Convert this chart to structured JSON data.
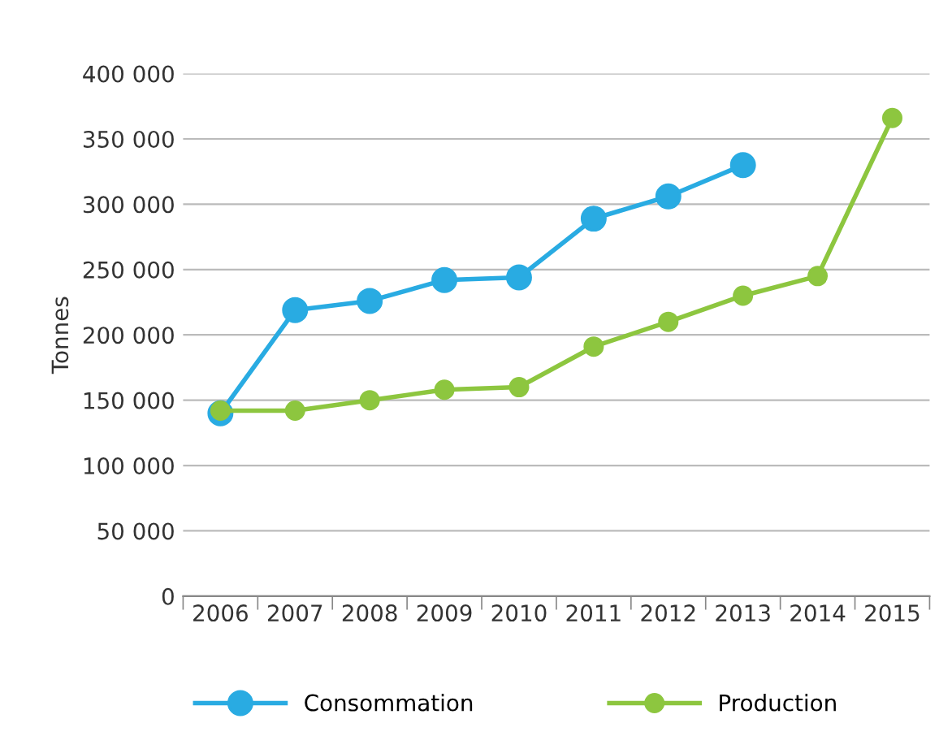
{
  "chart_data": {
    "type": "line",
    "ylabel": "Tonnes",
    "categories": [
      "2006",
      "2007",
      "2008",
      "2009",
      "2010",
      "2011",
      "2012",
      "2013",
      "2014",
      "2015"
    ],
    "series": [
      {
        "name": "Consommation",
        "color": "#29abe2",
        "values": [
          140000,
          219000,
          226000,
          242000,
          244000,
          289000,
          306000,
          330000,
          null,
          null
        ]
      },
      {
        "name": "Production",
        "color": "#8dc63f",
        "values": [
          142000,
          142000,
          150000,
          158000,
          160000,
          191000,
          210000,
          230000,
          245000,
          366000
        ]
      }
    ],
    "ylim": [
      0,
      400000
    ],
    "yticks": [
      {
        "value": 0,
        "label": "0"
      },
      {
        "value": 50000,
        "label": "50 000"
      },
      {
        "value": 100000,
        "label": "100 000"
      },
      {
        "value": 150000,
        "label": "150 000"
      },
      {
        "value": 200000,
        "label": "200 000"
      },
      {
        "value": 250000,
        "label": "250 000"
      },
      {
        "value": 300000,
        "label": "300 000"
      },
      {
        "value": 350000,
        "label": "350 000"
      },
      {
        "value": 400000,
        "label": "400 000"
      }
    ],
    "grid": "y",
    "legend": "bottom",
    "marker": "circle",
    "line_style": "solid"
  }
}
